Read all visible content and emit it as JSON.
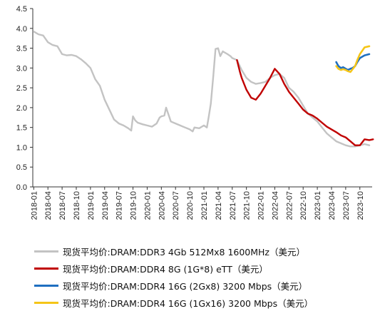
{
  "chart_data": {
    "type": "line",
    "ylim": [
      0.0,
      4.5
    ],
    "y_ticks": [
      "0.0",
      "0.5",
      "1.0",
      "1.5",
      "2.0",
      "2.5",
      "3.0",
      "3.5",
      "4.0",
      "4.5"
    ],
    "x_ticks": [
      "2018-01",
      "2018-04",
      "2018-07",
      "2018-10",
      "2019-01",
      "2019-04",
      "2019-07",
      "2019-10",
      "2020-01",
      "2020-04",
      "2020-07",
      "2020-10",
      "2021-01",
      "2021-04",
      "2021-07",
      "2021-10",
      "2022-01",
      "2022-04",
      "2022-07",
      "2022-10",
      "2023-01",
      "2023-04",
      "2023-07",
      "2023-10"
    ],
    "x_range": [
      "2018-01",
      "2023-12"
    ],
    "grid": false,
    "legend_position": "bottom",
    "series": [
      {
        "name": "现货平均价:DRAM:DDR3 4Gb 512Mx8 1600MHz（美元）",
        "color": "#c3c3c3",
        "points": [
          [
            "2018-01",
            3.92
          ],
          [
            "2018-02",
            3.85
          ],
          [
            "2018-03",
            3.82
          ],
          [
            "2018-04",
            3.65
          ],
          [
            "2018-05",
            3.58
          ],
          [
            "2018-06",
            3.55
          ],
          [
            "2018-07",
            3.35
          ],
          [
            "2018-08",
            3.32
          ],
          [
            "2018-09",
            3.33
          ],
          [
            "2018-10",
            3.3
          ],
          [
            "2018-11",
            3.22
          ],
          [
            "2018-12",
            3.12
          ],
          [
            "2019-01",
            3.0
          ],
          [
            "2019-02",
            2.72
          ],
          [
            "2019-03",
            2.55
          ],
          [
            "2019-04",
            2.2
          ],
          [
            "2019-05",
            1.95
          ],
          [
            "2019-06",
            1.7
          ],
          [
            "2019-07",
            1.6
          ],
          [
            "2019-08",
            1.55
          ],
          [
            "2019-09",
            1.48
          ],
          [
            "2019-09-20",
            1.42
          ],
          [
            "2019-10",
            1.78
          ],
          [
            "2019-10-15",
            1.68
          ],
          [
            "2019-11",
            1.62
          ],
          [
            "2019-12",
            1.58
          ],
          [
            "2020-01",
            1.55
          ],
          [
            "2020-02",
            1.52
          ],
          [
            "2020-03",
            1.6
          ],
          [
            "2020-03-20",
            1.75
          ],
          [
            "2020-04",
            1.78
          ],
          [
            "2020-04-20",
            1.8
          ],
          [
            "2020-05",
            2.0
          ],
          [
            "2020-05-20",
            1.78
          ],
          [
            "2020-06",
            1.65
          ],
          [
            "2020-07",
            1.6
          ],
          [
            "2020-08",
            1.55
          ],
          [
            "2020-09",
            1.5
          ],
          [
            "2020-10",
            1.45
          ],
          [
            "2020-10-20",
            1.4
          ],
          [
            "2020-11",
            1.5
          ],
          [
            "2020-12",
            1.48
          ],
          [
            "2021-01",
            1.55
          ],
          [
            "2021-01-20",
            1.5
          ],
          [
            "2021-02",
            1.75
          ],
          [
            "2021-02-15",
            2.1
          ],
          [
            "2021-03",
            2.8
          ],
          [
            "2021-03-15",
            3.48
          ],
          [
            "2021-04",
            3.5
          ],
          [
            "2021-04-15",
            3.3
          ],
          [
            "2021-05",
            3.42
          ],
          [
            "2021-06",
            3.35
          ],
          [
            "2021-06-20",
            3.3
          ],
          [
            "2021-07",
            3.25
          ],
          [
            "2021-08",
            3.2
          ],
          [
            "2021-09",
            2.95
          ],
          [
            "2021-10",
            2.75
          ],
          [
            "2021-11",
            2.65
          ],
          [
            "2021-12",
            2.6
          ],
          [
            "2022-01",
            2.62
          ],
          [
            "2022-02",
            2.65
          ],
          [
            "2022-03",
            2.75
          ],
          [
            "2022-04",
            2.82
          ],
          [
            "2022-05",
            2.85
          ],
          [
            "2022-06",
            2.75
          ],
          [
            "2022-07",
            2.5
          ],
          [
            "2022-08",
            2.4
          ],
          [
            "2022-09",
            2.25
          ],
          [
            "2022-10",
            2.05
          ],
          [
            "2022-11",
            1.85
          ],
          [
            "2022-12",
            1.75
          ],
          [
            "2023-01",
            1.65
          ],
          [
            "2023-02",
            1.5
          ],
          [
            "2023-03",
            1.35
          ],
          [
            "2023-04",
            1.25
          ],
          [
            "2023-05",
            1.15
          ],
          [
            "2023-06",
            1.1
          ],
          [
            "2023-07",
            1.05
          ],
          [
            "2023-08",
            1.02
          ],
          [
            "2023-09",
            1.02
          ],
          [
            "2023-10",
            1.05
          ],
          [
            "2023-11",
            1.08
          ],
          [
            "2023-12",
            1.05
          ]
        ]
      },
      {
        "name": "现货平均价:DRAM:DDR4 8G (1G*8) eTT（美元）",
        "color": "#c00000",
        "points": [
          [
            "2021-08",
            3.2
          ],
          [
            "2021-08-20",
            2.9
          ],
          [
            "2021-09",
            2.75
          ],
          [
            "2021-10",
            2.45
          ],
          [
            "2021-11",
            2.25
          ],
          [
            "2021-12",
            2.2
          ],
          [
            "2022-01",
            2.35
          ],
          [
            "2022-02",
            2.55
          ],
          [
            "2022-03",
            2.75
          ],
          [
            "2022-04",
            2.98
          ],
          [
            "2022-05",
            2.85
          ],
          [
            "2022-06",
            2.6
          ],
          [
            "2022-07",
            2.4
          ],
          [
            "2022-08",
            2.25
          ],
          [
            "2022-09",
            2.1
          ],
          [
            "2022-10",
            1.95
          ],
          [
            "2022-11",
            1.85
          ],
          [
            "2022-12",
            1.8
          ],
          [
            "2023-01",
            1.72
          ],
          [
            "2023-02",
            1.62
          ],
          [
            "2023-03",
            1.52
          ],
          [
            "2023-04",
            1.45
          ],
          [
            "2023-05",
            1.38
          ],
          [
            "2023-06",
            1.3
          ],
          [
            "2023-07",
            1.25
          ],
          [
            "2023-08",
            1.15
          ],
          [
            "2023-09",
            1.05
          ],
          [
            "2023-10",
            1.05
          ],
          [
            "2023-11",
            1.2
          ],
          [
            "2023-12",
            1.18
          ],
          [
            "2023-12-25",
            1.2
          ]
        ]
      },
      {
        "name": "现货平均价:DRAM:DDR4 16G (2Gx8) 3200 Mbps（美元）",
        "color": "#1f6fc0",
        "points": [
          [
            "2023-05",
            3.15
          ],
          [
            "2023-05-15",
            3.05
          ],
          [
            "2023-06",
            3.0
          ],
          [
            "2023-06-15",
            3.02
          ],
          [
            "2023-07",
            2.98
          ],
          [
            "2023-07-15",
            2.95
          ],
          [
            "2023-08",
            2.98
          ],
          [
            "2023-08-15",
            3.0
          ],
          [
            "2023-09",
            3.05
          ],
          [
            "2023-09-15",
            3.15
          ],
          [
            "2023-10",
            3.25
          ],
          [
            "2023-11",
            3.32
          ],
          [
            "2023-12",
            3.35
          ]
        ]
      },
      {
        "name": "现货平均价:DRAM:DDR4 16G (1Gx16) 3200 Mbps（美元）",
        "color": "#f5c518",
        "points": [
          [
            "2023-05",
            3.05
          ],
          [
            "2023-05-15",
            2.98
          ],
          [
            "2023-06",
            2.95
          ],
          [
            "2023-06-15",
            2.97
          ],
          [
            "2023-07",
            2.95
          ],
          [
            "2023-07-15",
            2.92
          ],
          [
            "2023-08",
            2.9
          ],
          [
            "2023-08-15",
            2.97
          ],
          [
            "2023-09",
            3.05
          ],
          [
            "2023-09-15",
            3.2
          ],
          [
            "2023-10",
            3.35
          ],
          [
            "2023-11",
            3.52
          ],
          [
            "2023-12",
            3.55
          ]
        ]
      }
    ]
  }
}
